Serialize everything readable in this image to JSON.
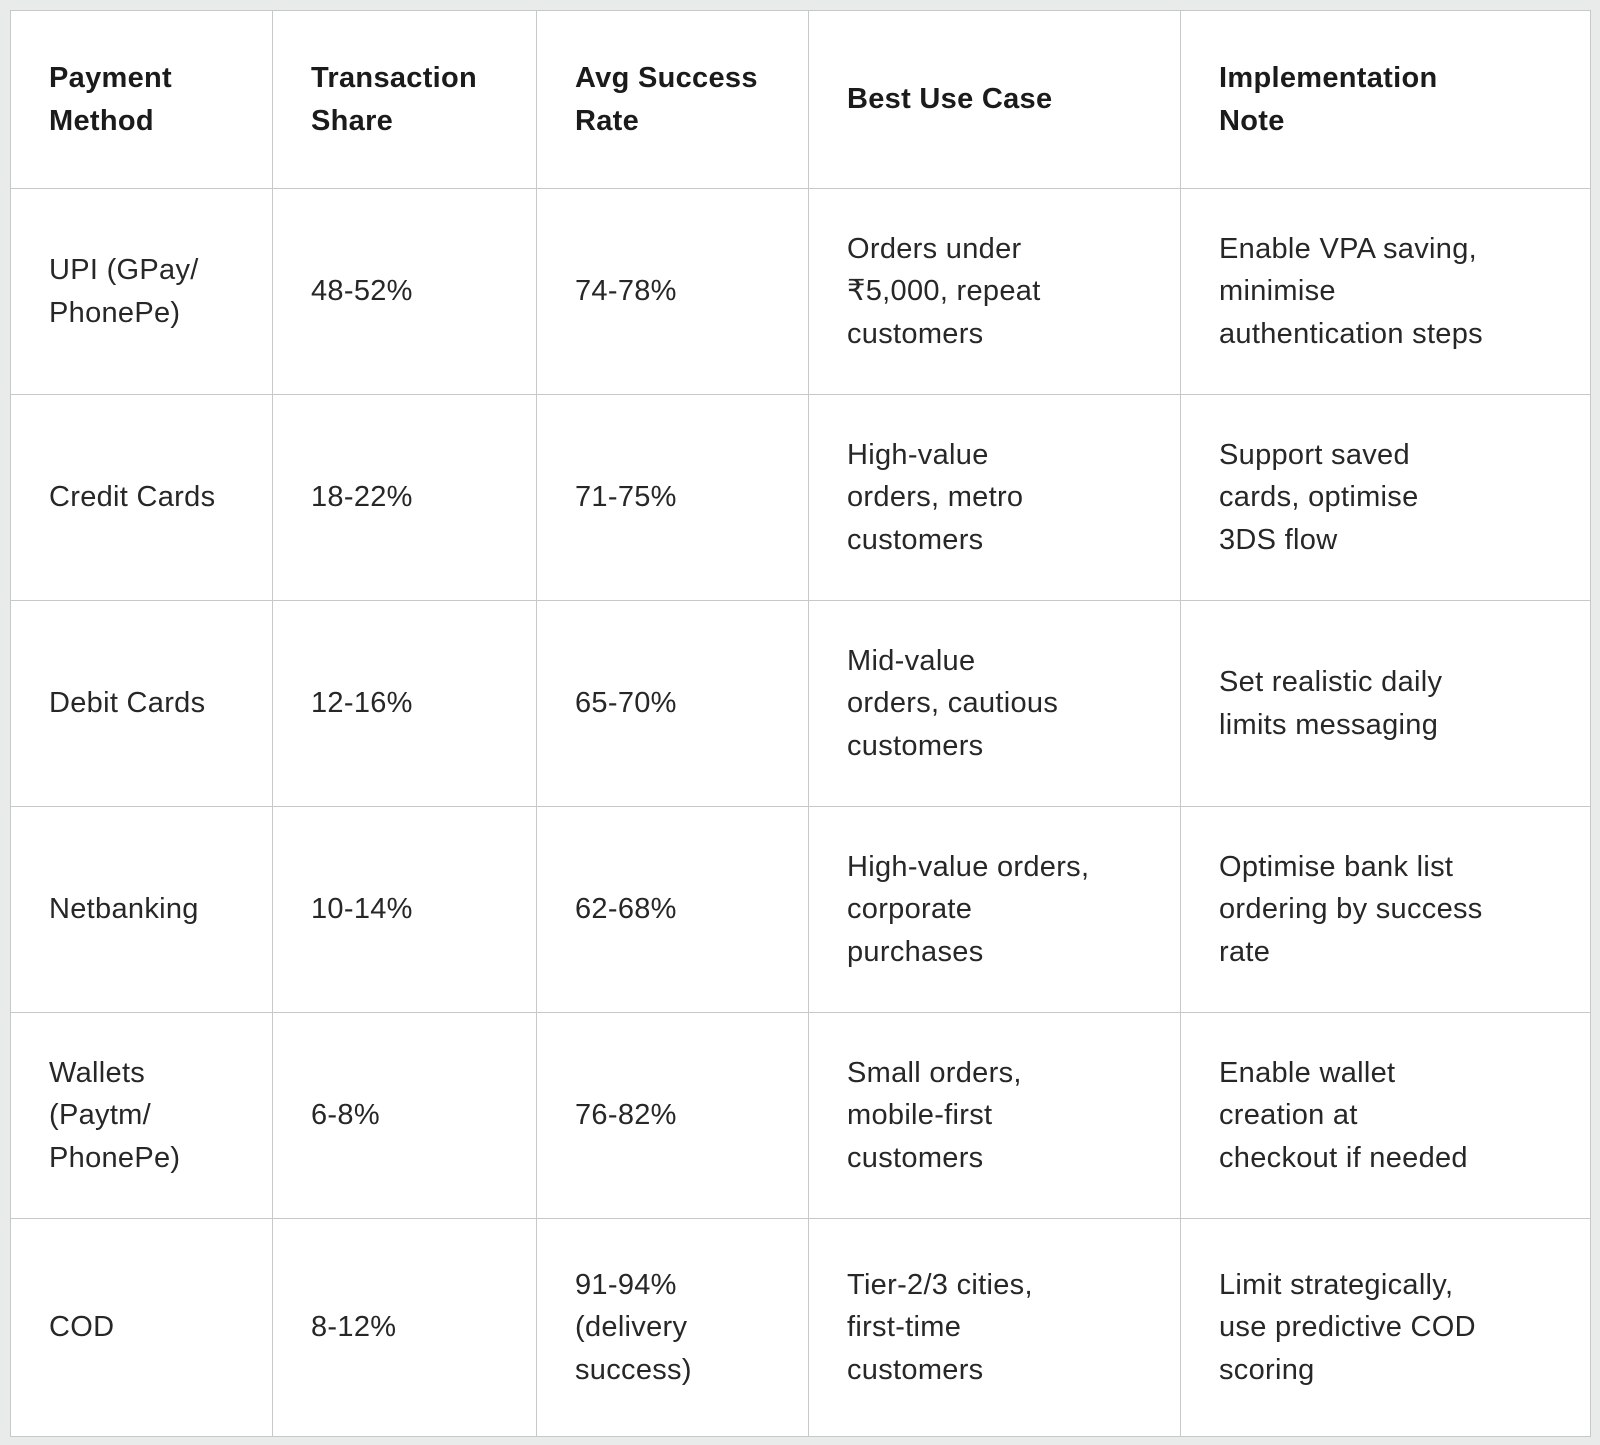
{
  "colors": {
    "page_bg": "#e9eaea",
    "cell_bg": "#ffffff",
    "border": "#c6c9cb",
    "text": "#212121"
  },
  "table": {
    "columns": [
      "Payment\nMethod",
      "Transaction\nShare",
      "Avg Success\nRate",
      "Best Use Case",
      "Implementation\nNote"
    ],
    "rows": [
      {
        "cells": [
          "UPI (GPay/\nPhonePe)",
          "48-52%",
          "74-78%",
          "Orders under\n₹5,000, repeat\ncustomers",
          "Enable VPA saving,\nminimise\nauthentication steps"
        ]
      },
      {
        "cells": [
          "Credit Cards",
          "18-22%",
          "71-75%",
          "High-value\norders, metro\ncustomers",
          "Support saved\ncards, optimise\n3DS flow"
        ]
      },
      {
        "cells": [
          "Debit Cards",
          "12-16%",
          "65-70%",
          "Mid-value\norders, cautious\ncustomers",
          "Set realistic daily\nlimits messaging"
        ]
      },
      {
        "cells": [
          "Netbanking",
          "10-14%",
          "62-68%",
          "High-value orders,\ncorporate\npurchases",
          "Optimise bank list\nordering by success\nrate"
        ]
      },
      {
        "cells": [
          "Wallets\n(Paytm/\nPhonePe)",
          "6-8%",
          "76-82%",
          "Small orders,\nmobile-first\ncustomers",
          "Enable wallet\ncreation at\ncheckout if needed"
        ]
      },
      {
        "cells": [
          "COD",
          "8-12%",
          "91-94%\n(delivery\nsuccess)",
          "Tier-2/3 cities,\nfirst-time\ncustomers",
          "Limit strategically,\nuse predictive COD\nscoring"
        ]
      }
    ]
  }
}
